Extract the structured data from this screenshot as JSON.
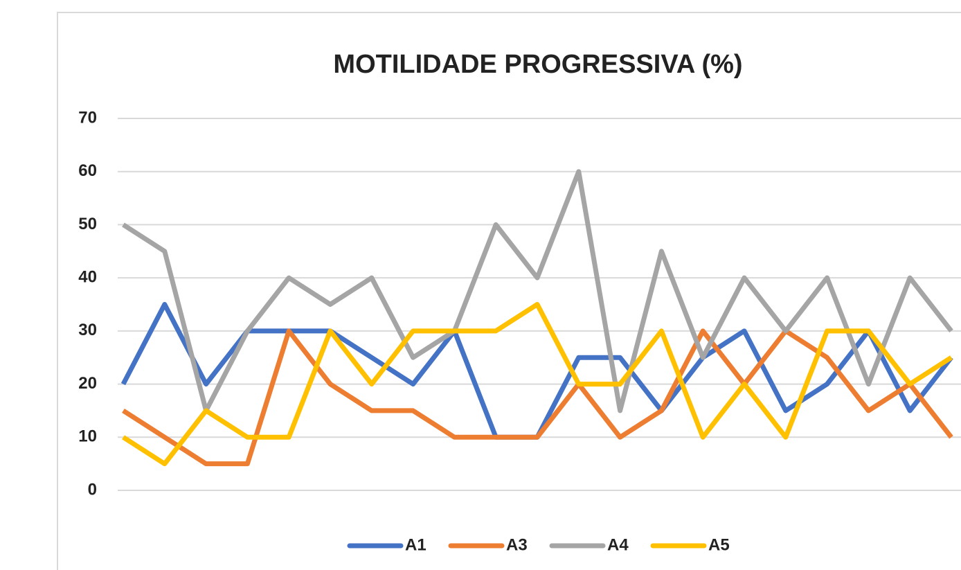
{
  "chart_data": {
    "type": "line",
    "title": "MOTILIDADE PROGRESSIVA (%)",
    "categories": [
      null,
      null,
      null,
      null,
      null,
      null,
      null,
      null,
      null,
      null,
      null,
      null,
      null,
      null,
      null,
      null,
      null,
      null,
      null,
      null,
      null
    ],
    "series": [
      {
        "name": "A1",
        "color": "#4472c4",
        "values": [
          20,
          35,
          20,
          30,
          30,
          30,
          25,
          20,
          30,
          10,
          10,
          25,
          25,
          15,
          25,
          30,
          15,
          20,
          30,
          15,
          25
        ]
      },
      {
        "name": "A3",
        "color": "#ed7d31",
        "values": [
          15,
          10,
          5,
          5,
          30,
          20,
          15,
          15,
          10,
          10,
          10,
          20,
          10,
          15,
          30,
          20,
          30,
          25,
          15,
          20,
          10
        ]
      },
      {
        "name": "A4",
        "color": "#a5a5a5",
        "values": [
          50,
          45,
          15,
          30,
          40,
          35,
          40,
          25,
          30,
          50,
          40,
          60,
          15,
          45,
          25,
          40,
          30,
          40,
          20,
          40,
          30
        ]
      },
      {
        "name": "A5",
        "color": "#ffc000",
        "values": [
          10,
          5,
          15,
          10,
          10,
          30,
          20,
          30,
          30,
          30,
          35,
          20,
          20,
          30,
          10,
          20,
          10,
          30,
          30,
          20,
          25
        ]
      }
    ],
    "ylim": [
      0,
      70
    ],
    "yticks": [
      0,
      10,
      20,
      30,
      40,
      50,
      60,
      70
    ],
    "grid": true,
    "legend": "bottom"
  }
}
